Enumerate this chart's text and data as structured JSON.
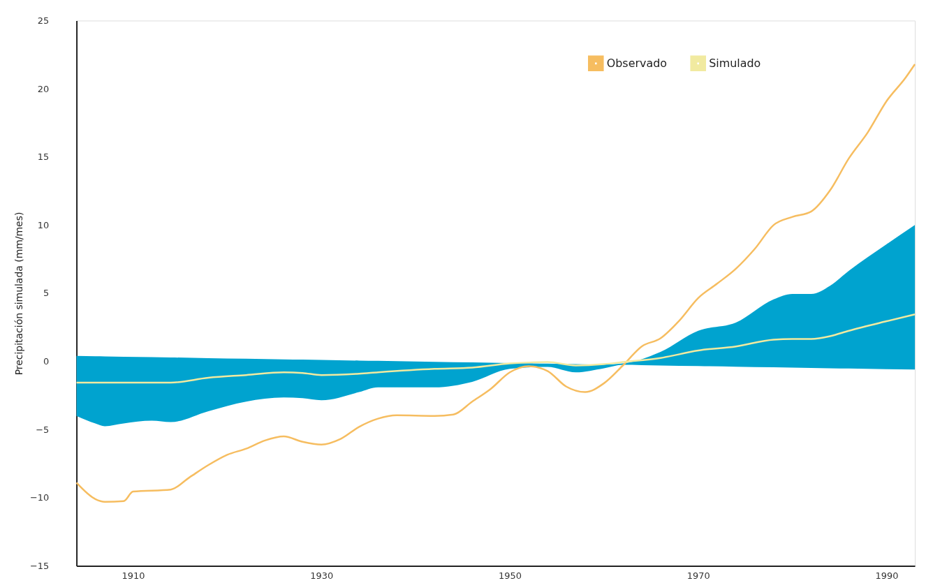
{
  "chart_data": {
    "type": "line",
    "ylabel": "Precipitación simulada (mm/mes)",
    "xlim": [
      1904,
      1993
    ],
    "xticks": [
      1910,
      1930,
      1950,
      1970,
      1990
    ],
    "ylim": [
      -15,
      25
    ],
    "yticks": [
      -15,
      -10,
      -5,
      0,
      5,
      10,
      15,
      20,
      25
    ],
    "grid": false,
    "legend": "top right",
    "marker": "none",
    "line_style": "solid",
    "series": [
      {
        "name": "Observado",
        "color": "#f6bd60",
        "x": [
          1904,
          1906,
          1907,
          1909,
          1910,
          1914,
          1916,
          1918,
          1920,
          1922,
          1924,
          1926,
          1928,
          1930,
          1932,
          1934,
          1936,
          1938,
          1942,
          1944,
          1946,
          1948,
          1950,
          1952,
          1954,
          1956,
          1958,
          1960,
          1962,
          1964,
          1966,
          1968,
          1970,
          1972,
          1974,
          1976,
          1978,
          1980,
          1982,
          1984,
          1986,
          1988,
          1990,
          1992,
          1993
        ],
        "values": [
          -8.9,
          -10.1,
          -10.3,
          -10.25,
          -9.55,
          -9.4,
          -8.5,
          -7.6,
          -6.85,
          -6.4,
          -5.8,
          -5.5,
          -5.9,
          -6.1,
          -5.7,
          -4.8,
          -4.2,
          -3.95,
          -4.0,
          -3.9,
          -2.95,
          -2.0,
          -0.8,
          -0.35,
          -0.7,
          -1.85,
          -2.25,
          -1.6,
          -0.3,
          1.1,
          1.7,
          3.0,
          4.65,
          5.7,
          6.8,
          8.25,
          10.0,
          10.6,
          11.0,
          12.55,
          14.9,
          16.8,
          19.1,
          20.8,
          21.8
        ]
      },
      {
        "name": "Simulado",
        "color": "#f1eaa0",
        "colors": [
          "#00a3cf",
          "#00a3cf",
          "#00a3cf",
          "#00a3cf",
          "#00a3cf",
          "#00a3cf",
          "#00a3cf",
          "#00a3cf",
          "#00a3cf",
          "#00a3cf",
          "#00a3cf",
          "#00a3cf",
          "#00a3cf",
          "#00a3cf",
          "#00a3cf",
          "#00a3cf",
          "#00a3cf",
          "#00a3cf",
          "#00a3cf",
          "#00a3cf",
          "#00a3cf",
          "#00a3cf",
          "#00a3cf",
          "#00a3cf",
          "#00a3cf",
          "#00a3cf",
          "#00a3cf",
          "#00a3cf",
          "#00a3cf",
          "#00a3cf"
        ],
        "x": [
          1904,
          1906,
          1907,
          1909,
          1912,
          1914,
          1918,
          1922,
          1926,
          1928,
          1930,
          1934,
          1936,
          1942,
          1946,
          1950,
          1954,
          1957,
          1960,
          1962,
          1966,
          1970,
          1974,
          1978,
          1980,
          1982,
          1984,
          1986,
          1990,
          1993
        ],
        "values": [
          -1.55,
          -1.55,
          -1.55,
          -1.55,
          -1.55,
          -1.55,
          -1.2,
          -1.0,
          -0.8,
          -0.85,
          -1.0,
          -0.9,
          -0.8,
          -0.55,
          -0.45,
          -0.15,
          -0.05,
          -0.3,
          -0.2,
          -0.05,
          0.25,
          0.8,
          1.1,
          1.6,
          1.65,
          1.65,
          1.85,
          2.25,
          2.95,
          3.45
        ],
        "lower": [
          -4.0,
          -4.55,
          -4.75,
          -4.55,
          -4.35,
          -4.45,
          -3.65,
          -2.95,
          -2.65,
          -2.7,
          -2.85,
          -2.25,
          -1.9,
          -1.9,
          -1.5,
          -0.55,
          -0.4,
          -0.8,
          -0.5,
          -0.25,
          -0.3,
          -0.34,
          -0.39,
          -0.43,
          -0.45,
          -0.48,
          -0.5,
          -0.52,
          -0.57,
          -0.6
        ],
        "upper": [
          0.4,
          0.38,
          0.37,
          0.34,
          0.31,
          0.29,
          0.24,
          0.2,
          0.15,
          0.13,
          0.11,
          0.06,
          0.04,
          -0.03,
          -0.07,
          -0.12,
          -0.16,
          -0.2,
          -0.23,
          -0.15,
          0.7,
          2.25,
          2.85,
          4.55,
          4.95,
          4.95,
          5.55,
          6.65,
          8.6,
          10.0
        ]
      }
    ]
  }
}
